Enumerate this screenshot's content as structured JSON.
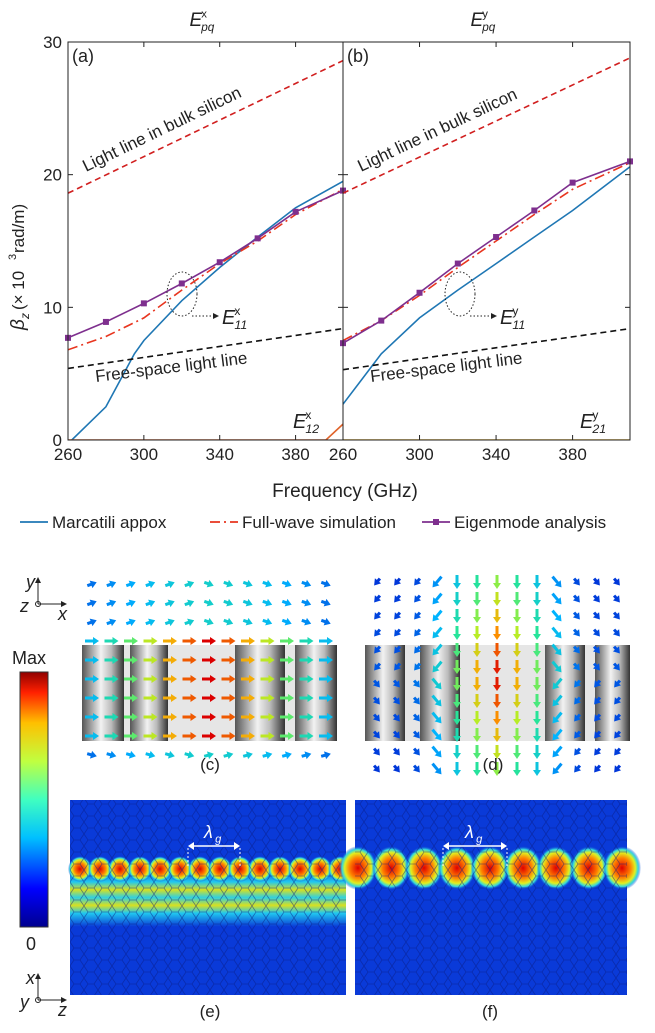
{
  "chart_data": [
    {
      "type": "line",
      "title": {
        "base": "E",
        "sup": "x",
        "sub": "pq"
      },
      "panel_label": "(a)",
      "y_label": {
        "base": "β",
        "sub": "z",
        "rest": "(× 10",
        "sup": "3",
        "tail": " rad/m)"
      },
      "x_label": "Frequency (GHz)",
      "xlim": [
        260,
        405
      ],
      "ylim": [
        0,
        30
      ],
      "xticks": [
        260,
        300,
        340,
        380
      ],
      "yticks": [
        0,
        10,
        20,
        30
      ],
      "series": [
        {
          "name": "Marcatili appox",
          "color": "#1f77b4",
          "style": "solid",
          "x": [
            262,
            280,
            295,
            300,
            320,
            340,
            360,
            380,
            405
          ],
          "values": [
            0,
            2.5,
            6.5,
            7.5,
            10.5,
            13.0,
            15.3,
            17.5,
            19.5
          ]
        },
        {
          "name": "Full-wave simulation",
          "color": "#e8351f",
          "style": "dashdot",
          "x": [
            260,
            280,
            300,
            320,
            340,
            360,
            380,
            405
          ],
          "values": [
            6.8,
            7.8,
            9.2,
            11.3,
            13.3,
            15.0,
            17.0,
            18.9
          ]
        },
        {
          "name": "Eigenmode analysis",
          "color": "#7e2f8e",
          "style": "solid",
          "marker": "square",
          "x": [
            260,
            280,
            300,
            320,
            340,
            360,
            380,
            405
          ],
          "values": [
            7.7,
            8.9,
            10.3,
            11.8,
            13.4,
            15.2,
            17.2,
            18.8
          ]
        },
        {
          "color": "#d11f1f",
          "style": "dash",
          "x": [
            260,
            405
          ],
          "values": [
            18.6,
            28.6
          ]
        },
        {
          "color": "#111111",
          "style": "dash",
          "x": [
            260,
            405
          ],
          "values": [
            5.4,
            8.4
          ]
        },
        {
          "color": "#e0632a",
          "style": "solid",
          "x": [
            260,
            396,
            405
          ],
          "values": [
            0,
            0,
            1.2
          ]
        }
      ],
      "annotations": [
        {
          "text": "Light line in bulk silicon"
        },
        {
          "text": "Free-space light line"
        },
        {
          "base": "E",
          "sup": "x",
          "sub": "11"
        },
        {
          "base": "E",
          "sup": "x",
          "sub": "12"
        }
      ]
    },
    {
      "type": "line",
      "title": {
        "base": "E",
        "sup": "y",
        "sub": "pq"
      },
      "panel_label": "(b)",
      "xlim": [
        260,
        410
      ],
      "ylim": [
        0,
        30
      ],
      "xticks": [
        260,
        300,
        340,
        380
      ],
      "series": [
        {
          "color": "#1f77b4",
          "style": "solid",
          "x": [
            260,
            280,
            300,
            320,
            340,
            360,
            380,
            410
          ],
          "values": [
            2.7,
            6.5,
            9.2,
            11.3,
            13.3,
            15.3,
            17.3,
            20.6
          ]
        },
        {
          "color": "#e8351f",
          "style": "dashdot",
          "x": [
            260,
            280,
            300,
            320,
            340,
            360,
            380,
            410
          ],
          "values": [
            7.5,
            9.0,
            10.9,
            13.0,
            15.0,
            17.0,
            18.9,
            20.9
          ]
        },
        {
          "color": "#7e2f8e",
          "style": "solid",
          "marker": "square",
          "x": [
            260,
            280,
            300,
            320,
            340,
            360,
            380,
            410
          ],
          "values": [
            7.3,
            9.0,
            11.1,
            13.3,
            15.3,
            17.3,
            19.4,
            21.0
          ]
        },
        {
          "color": "#d11f1f",
          "style": "dash",
          "x": [
            260,
            410
          ],
          "values": [
            18.6,
            28.8
          ]
        },
        {
          "color": "#111111",
          "style": "dash",
          "x": [
            260,
            410
          ],
          "values": [
            5.3,
            8.4
          ]
        },
        {
          "color": "#edb120",
          "style": "solid",
          "x": [
            260,
            410
          ],
          "values": [
            0,
            0
          ]
        }
      ],
      "annotations": [
        {
          "text": "Light line in bulk silicon"
        },
        {
          "text": "Free-space light line"
        },
        {
          "base": "E",
          "sup": "y",
          "sub": "11"
        },
        {
          "base": "E",
          "sup": "y",
          "sub": "21"
        }
      ]
    }
  ],
  "field_panels": {
    "labels": [
      "(c)",
      "(d)",
      "(e)",
      "(f)"
    ],
    "colorbar": {
      "max": "Max",
      "min": "0"
    },
    "axes_top": {
      "y": "y",
      "z": "z",
      "x": "x"
    },
    "axes_bottom": {
      "x": "x",
      "y": "y",
      "z": "z"
    },
    "wavelength": {
      "base": "λ",
      "sub": "g"
    }
  }
}
